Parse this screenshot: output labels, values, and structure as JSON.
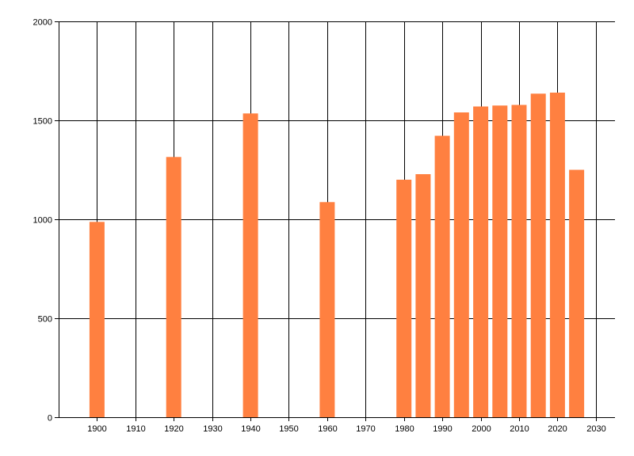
{
  "chart_data": {
    "type": "bar",
    "title": "",
    "xlabel": "",
    "ylabel": "",
    "x": [
      1900,
      1920,
      1940,
      1960,
      1980,
      1985,
      1990,
      1995,
      2000,
      2005,
      2010,
      2015,
      2020,
      2025
    ],
    "values": [
      987,
      1315,
      1535,
      1087,
      1200,
      1228,
      1422,
      1540,
      1570,
      1575,
      1578,
      1635,
      1640,
      1250
    ],
    "xlim": [
      1890,
      2035
    ],
    "ylim": [
      0,
      2000
    ],
    "xticks": [
      1900,
      1910,
      1920,
      1930,
      1940,
      1950,
      1960,
      1970,
      1980,
      1990,
      2000,
      2010,
      2020,
      2030
    ],
    "yticks": [
      0,
      500,
      1000,
      1500,
      2000
    ],
    "grid": true,
    "legend": "none",
    "colors": {
      "bar": "#ff8040",
      "grid": "#000000",
      "axis": "#000000"
    }
  }
}
